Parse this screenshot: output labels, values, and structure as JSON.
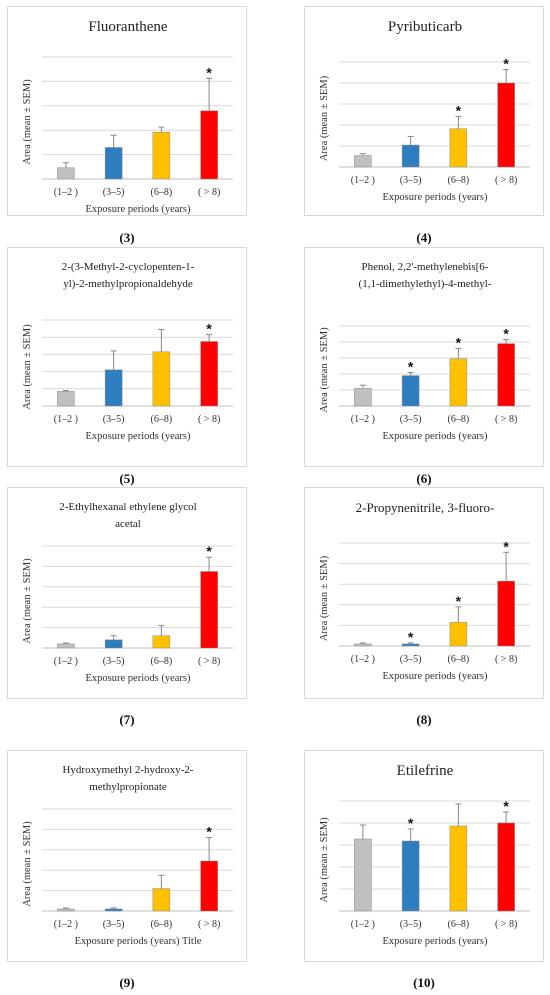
{
  "colors": [
    "#c0c0c0",
    "#2e7ebf",
    "#ffc000",
    "#ff0000"
  ],
  "chart_data": [
    {
      "type": "bar",
      "title": [
        "Fluoranthene"
      ],
      "title_size": "large",
      "categories": [
        "(1–2 )",
        "(3–5)",
        "(6–8)",
        "( > 8)"
      ],
      "values": [
        0.55,
        1.55,
        2.3,
        3.35
      ],
      "errors": [
        0.25,
        0.6,
        0.25,
        1.6
      ],
      "significant": [
        false,
        false,
        false,
        true
      ],
      "ylim": [
        0,
        6
      ],
      "xlabel": "Exposure periods (years)",
      "ylabel": "Area (mean ± SEM)",
      "caption": "(3)"
    },
    {
      "type": "bar",
      "title": [
        "Pyributicarb"
      ],
      "title_size": "large",
      "categories": [
        "(1–2 )",
        "(3–5)",
        "(6–8)",
        "( > 8)"
      ],
      "values": [
        0.6,
        1.15,
        2.0,
        4.4
      ],
      "errors": [
        0.1,
        0.45,
        0.65,
        0.7
      ],
      "significant": [
        false,
        false,
        true,
        true
      ],
      "ylim": [
        0,
        5.5
      ],
      "xlabel": "Exposure periods (years)",
      "ylabel": "Area (mean ± SEM)",
      "caption": "(4)"
    },
    {
      "type": "bar",
      "title": [
        "2-(3-Methyl-2-cyclopenten-1-",
        "yl)-2-methylpropionaldehyde"
      ],
      "title_size": "small",
      "categories": [
        "(1–2 )",
        "(3–5)",
        "(6–8)",
        "( > 8)"
      ],
      "values": [
        0.85,
        2.1,
        3.15,
        3.75
      ],
      "errors": [
        0.05,
        1.1,
        1.3,
        0.4
      ],
      "significant": [
        false,
        false,
        false,
        true
      ],
      "ylim": [
        0,
        5
      ],
      "xlabel": "Exposure periods (years)",
      "ylabel": "Area (mean ± SEM)",
      "caption": "(5)"
    },
    {
      "type": "bar",
      "title": [
        "Phenol, 2,2'-methylenebis[6-",
        "(1,1-dimethylethyl)-4-methyl-"
      ],
      "title_size": "small",
      "categories": [
        "(1–2 )",
        "(3–5)",
        "(6–8)",
        "( > 8)"
      ],
      "values": [
        1.1,
        1.9,
        2.95,
        3.9
      ],
      "errors": [
        0.2,
        0.2,
        0.65,
        0.25
      ],
      "significant": [
        false,
        true,
        true,
        true
      ],
      "ylim": [
        0,
        5
      ],
      "xlabel": "Exposure periods (years)",
      "ylabel": "Area (mean ± SEM)",
      "caption": "(6)"
    },
    {
      "type": "bar",
      "title": [
        "2-Ethylhexanal ethylene glycol",
        "acetal"
      ],
      "title_size": "small",
      "categories": [
        "(1–2 )",
        "(3–5)",
        "(6–8)",
        "( > 8)"
      ],
      "values": [
        0.2,
        0.4,
        0.6,
        3.75
      ],
      "errors": [
        0.05,
        0.2,
        0.5,
        0.7
      ],
      "significant": [
        false,
        false,
        false,
        true
      ],
      "ylim": [
        0,
        5
      ],
      "xlabel": "Exposure periods (years)",
      "ylabel": "Area (mean ± SEM)",
      "caption": "(7)"
    },
    {
      "type": "bar",
      "title": [
        "2-Propynenitrile, 3-fluoro-"
      ],
      "title_size": "medium",
      "categories": [
        "(1–2 )",
        "(3–5)",
        "(6–8)",
        "( > 8)"
      ],
      "values": [
        0.1,
        0.1,
        1.15,
        3.15
      ],
      "errors": [
        0.05,
        0.05,
        0.75,
        1.4
      ],
      "significant": [
        false,
        true,
        true,
        true
      ],
      "ylim": [
        0,
        5
      ],
      "xlabel": "Exposure periods (years)",
      "ylabel": "Area (mean ± SEM)",
      "caption": "(8)"
    },
    {
      "type": "bar",
      "title": [
        "Hydroxymethyl 2-hydroxy-2-",
        "methylpropionate"
      ],
      "title_size": "small",
      "categories": [
        "(1–2 )",
        "(3–5)",
        "(6–8)",
        "( > 8)"
      ],
      "values": [
        0.1,
        0.1,
        1.1,
        2.45
      ],
      "errors": [
        0.05,
        0.05,
        0.65,
        1.15
      ],
      "significant": [
        false,
        false,
        false,
        true
      ],
      "ylim": [
        0,
        5
      ],
      "xlabel": "Exposure periods (years) Title",
      "ylabel": "Area (mean ± SEM)",
      "caption": "(9)"
    },
    {
      "type": "bar",
      "title": [
        "Etilefrine"
      ],
      "title_size": "large",
      "categories": [
        "(1–2 )",
        "(3–5)",
        "(6–8)",
        "( > 8)"
      ],
      "values": [
        3.6,
        3.5,
        4.25,
        4.4
      ],
      "errors": [
        0.7,
        0.6,
        1.1,
        0.55
      ],
      "significant": [
        false,
        true,
        false,
        true
      ],
      "ylim": [
        0,
        5.5
      ],
      "xlabel": "Exposure periods (years)",
      "ylabel": "Area (mean ± SEM)",
      "caption": "(10)"
    }
  ]
}
